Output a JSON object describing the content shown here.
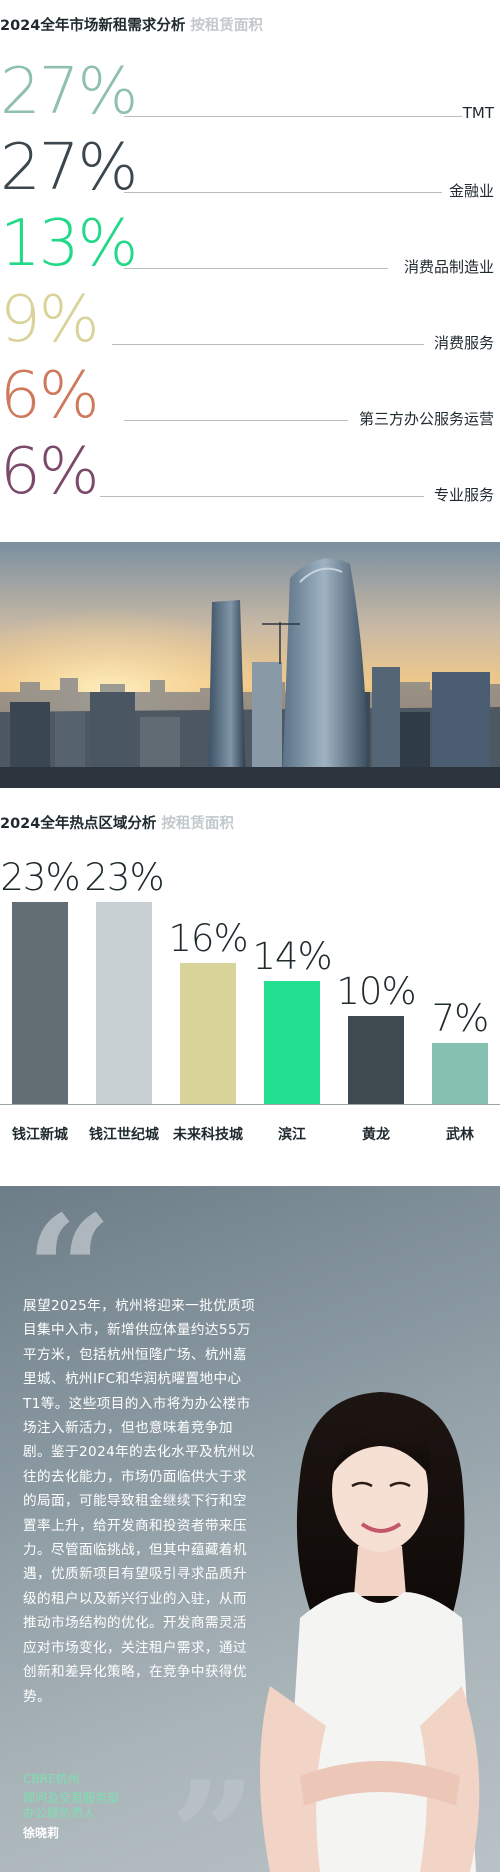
{
  "section1": {
    "title": "2024全年市场新租需求分析",
    "subtitle": "按租赁面积",
    "items": [
      {
        "pct": "27%",
        "label": "TMT",
        "color": "#8fbfb0"
      },
      {
        "pct": "27%",
        "label": "金融业",
        "color": "#3b474c"
      },
      {
        "pct": "13%",
        "label": "消费品制造业",
        "color": "#22d987"
      },
      {
        "pct": "9%",
        "label": "消费服务",
        "color": "#d9d39a"
      },
      {
        "pct": "6%",
        "label": "第三方办公服务运营",
        "color": "#d0785c"
      },
      {
        "pct": "6%",
        "label": "专业服务",
        "color": "#7b4a6b"
      }
    ]
  },
  "section2": {
    "title": "2024全年热点区域分析",
    "subtitle": "按租赁面积"
  },
  "chart_data": {
    "type": "bar",
    "categories": [
      "钱江新城",
      "钱江世纪城",
      "未来科技城",
      "滨江",
      "黄龙",
      "武林"
    ],
    "values": [
      23,
      23,
      16,
      14,
      10,
      7
    ],
    "value_labels": [
      "23%",
      "23%",
      "16%",
      "14%",
      "10%",
      "7%"
    ],
    "colors": [
      "#646f75",
      "#c9d0d3",
      "#d8d49a",
      "#22e08f",
      "#3f4a50",
      "#86c0b0"
    ],
    "title": "",
    "ylim": [
      0,
      23
    ]
  },
  "quote": {
    "text": "展望2025年，杭州将迎来一批优质项目集中入市，新增供应体量约达55万平方米，包括杭州恒隆广场、杭州嘉里城、杭州IFC和华润杭曜置地中心T1等。这些项目的入市将为办公楼市场注入新活力，但也意味着竞争加剧。鉴于2024年的去化水平及杭州以往的去化能力，市场仍面临供大于求的局面，可能导致租金继续下行和空置率上升，给开发商和投资者带来压力。尽管面临挑战，但其中蕴藏着机遇，优质新项目有望吸引寻求品质升级的租户以及新兴行业的入驻，从而推动市场结构的优化。开发商需灵活应对市场变化，关注租户需求，通过创新和差异化策略，在竞争中获得优势。",
    "org": "CBRE杭州",
    "dept": "顾问及交易服务部",
    "role": "办公楼负责人",
    "name": "徐晓莉",
    "open_mark": "“",
    "close_mark": "”"
  }
}
